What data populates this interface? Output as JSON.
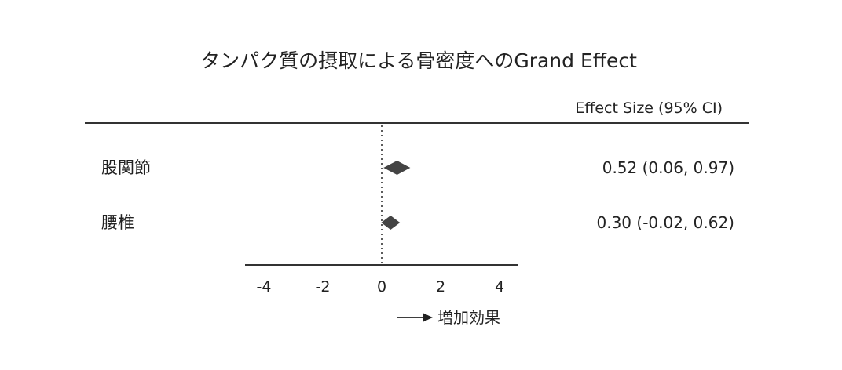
{
  "chart_data": {
    "type": "forest",
    "title": "タンパク質の摂取による骨密度へのGrand Effect",
    "effect_header": "Effect Size (95% CI)",
    "direction_label": "増加効果",
    "xlim": [
      -4.9,
      4.8
    ],
    "xticks": [
      -4,
      -2,
      0,
      2,
      4
    ],
    "tick_labels": [
      "-4",
      "-2",
      "0",
      "2",
      "4"
    ],
    "reference_line": 0,
    "rows": [
      {
        "label": "股関節",
        "estimate": 0.52,
        "ci_low": 0.06,
        "ci_high": 0.97,
        "ci_text": "0.52 (0.06, 0.97)"
      },
      {
        "label": "腰椎",
        "estimate": 0.3,
        "ci_low": -0.02,
        "ci_high": 0.62,
        "ci_text": "0.30 (-0.02, 0.62)"
      }
    ],
    "marker_color": "#444444",
    "line_color": "#333333"
  }
}
